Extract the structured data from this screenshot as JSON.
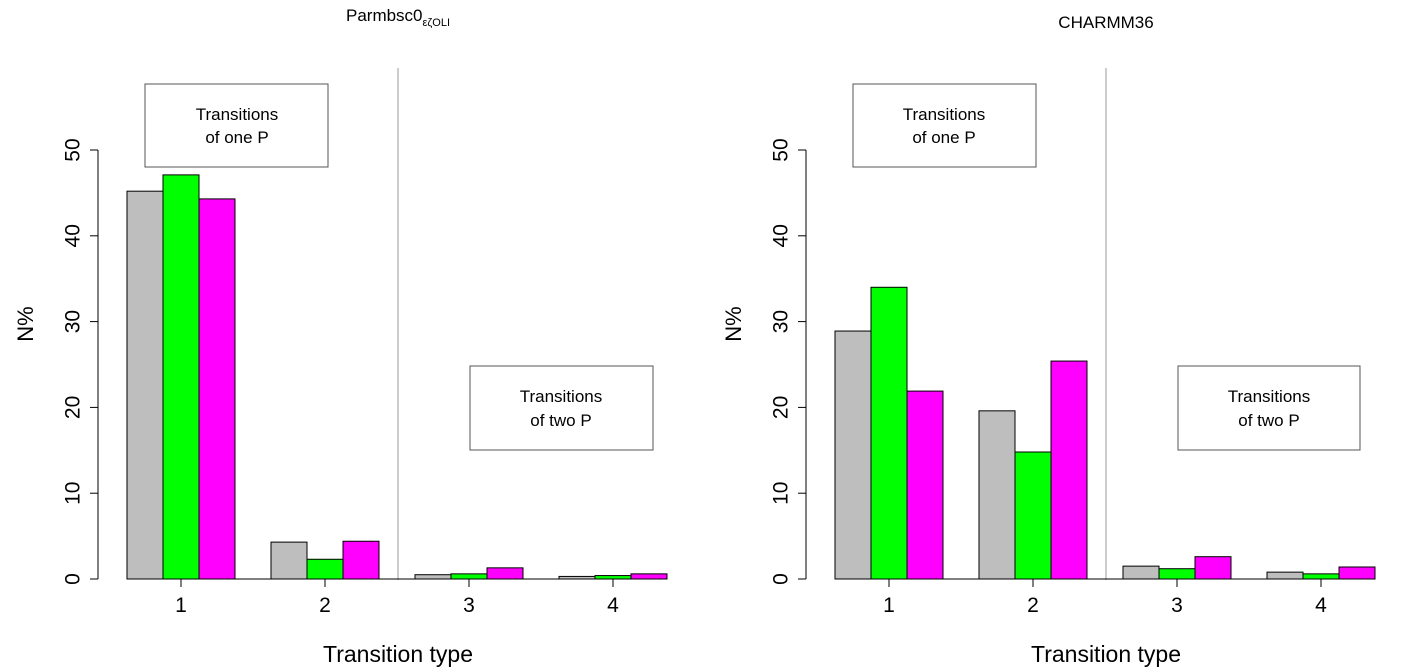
{
  "chart_data": [
    {
      "type": "bar",
      "title": "Parmbsc0",
      "title_subscript": "εζOLI",
      "xlabel": "Transition type",
      "ylabel": "N%",
      "categories": [
        "1",
        "2",
        "3",
        "4"
      ],
      "yticks": [
        "0",
        "10",
        "20",
        "30",
        "40",
        "50"
      ],
      "ylim": [
        0,
        50
      ],
      "series": [
        {
          "color": "#bebebe",
          "values": [
            45.2,
            4.3,
            0.5,
            0.3
          ]
        },
        {
          "color": "#00ff00",
          "values": [
            47.1,
            2.3,
            0.6,
            0.4
          ]
        },
        {
          "color": "#ff00ff",
          "values": [
            44.3,
            4.4,
            1.3,
            0.6
          ]
        }
      ],
      "annotations": [
        {
          "lines": [
            "Transitions",
            "of one P"
          ]
        },
        {
          "lines": [
            "Transitions",
            "of two P"
          ]
        }
      ],
      "grid": false
    },
    {
      "type": "bar",
      "title": "CHARMM36",
      "xlabel": "Transition type",
      "ylabel": "N%",
      "categories": [
        "1",
        "2",
        "3",
        "4"
      ],
      "yticks": [
        "0",
        "10",
        "20",
        "30",
        "40",
        "50"
      ],
      "ylim": [
        0,
        50
      ],
      "series": [
        {
          "color": "#bebebe",
          "values": [
            28.9,
            19.6,
            1.5,
            0.8
          ]
        },
        {
          "color": "#00ff00",
          "values": [
            34.0,
            14.8,
            1.2,
            0.6
          ]
        },
        {
          "color": "#ff00ff",
          "values": [
            21.9,
            25.4,
            2.6,
            1.4
          ]
        }
      ],
      "annotations": [
        {
          "lines": [
            "Transitions",
            "of one P"
          ]
        },
        {
          "lines": [
            "Transitions",
            "of two P"
          ]
        }
      ],
      "grid": false
    }
  ]
}
